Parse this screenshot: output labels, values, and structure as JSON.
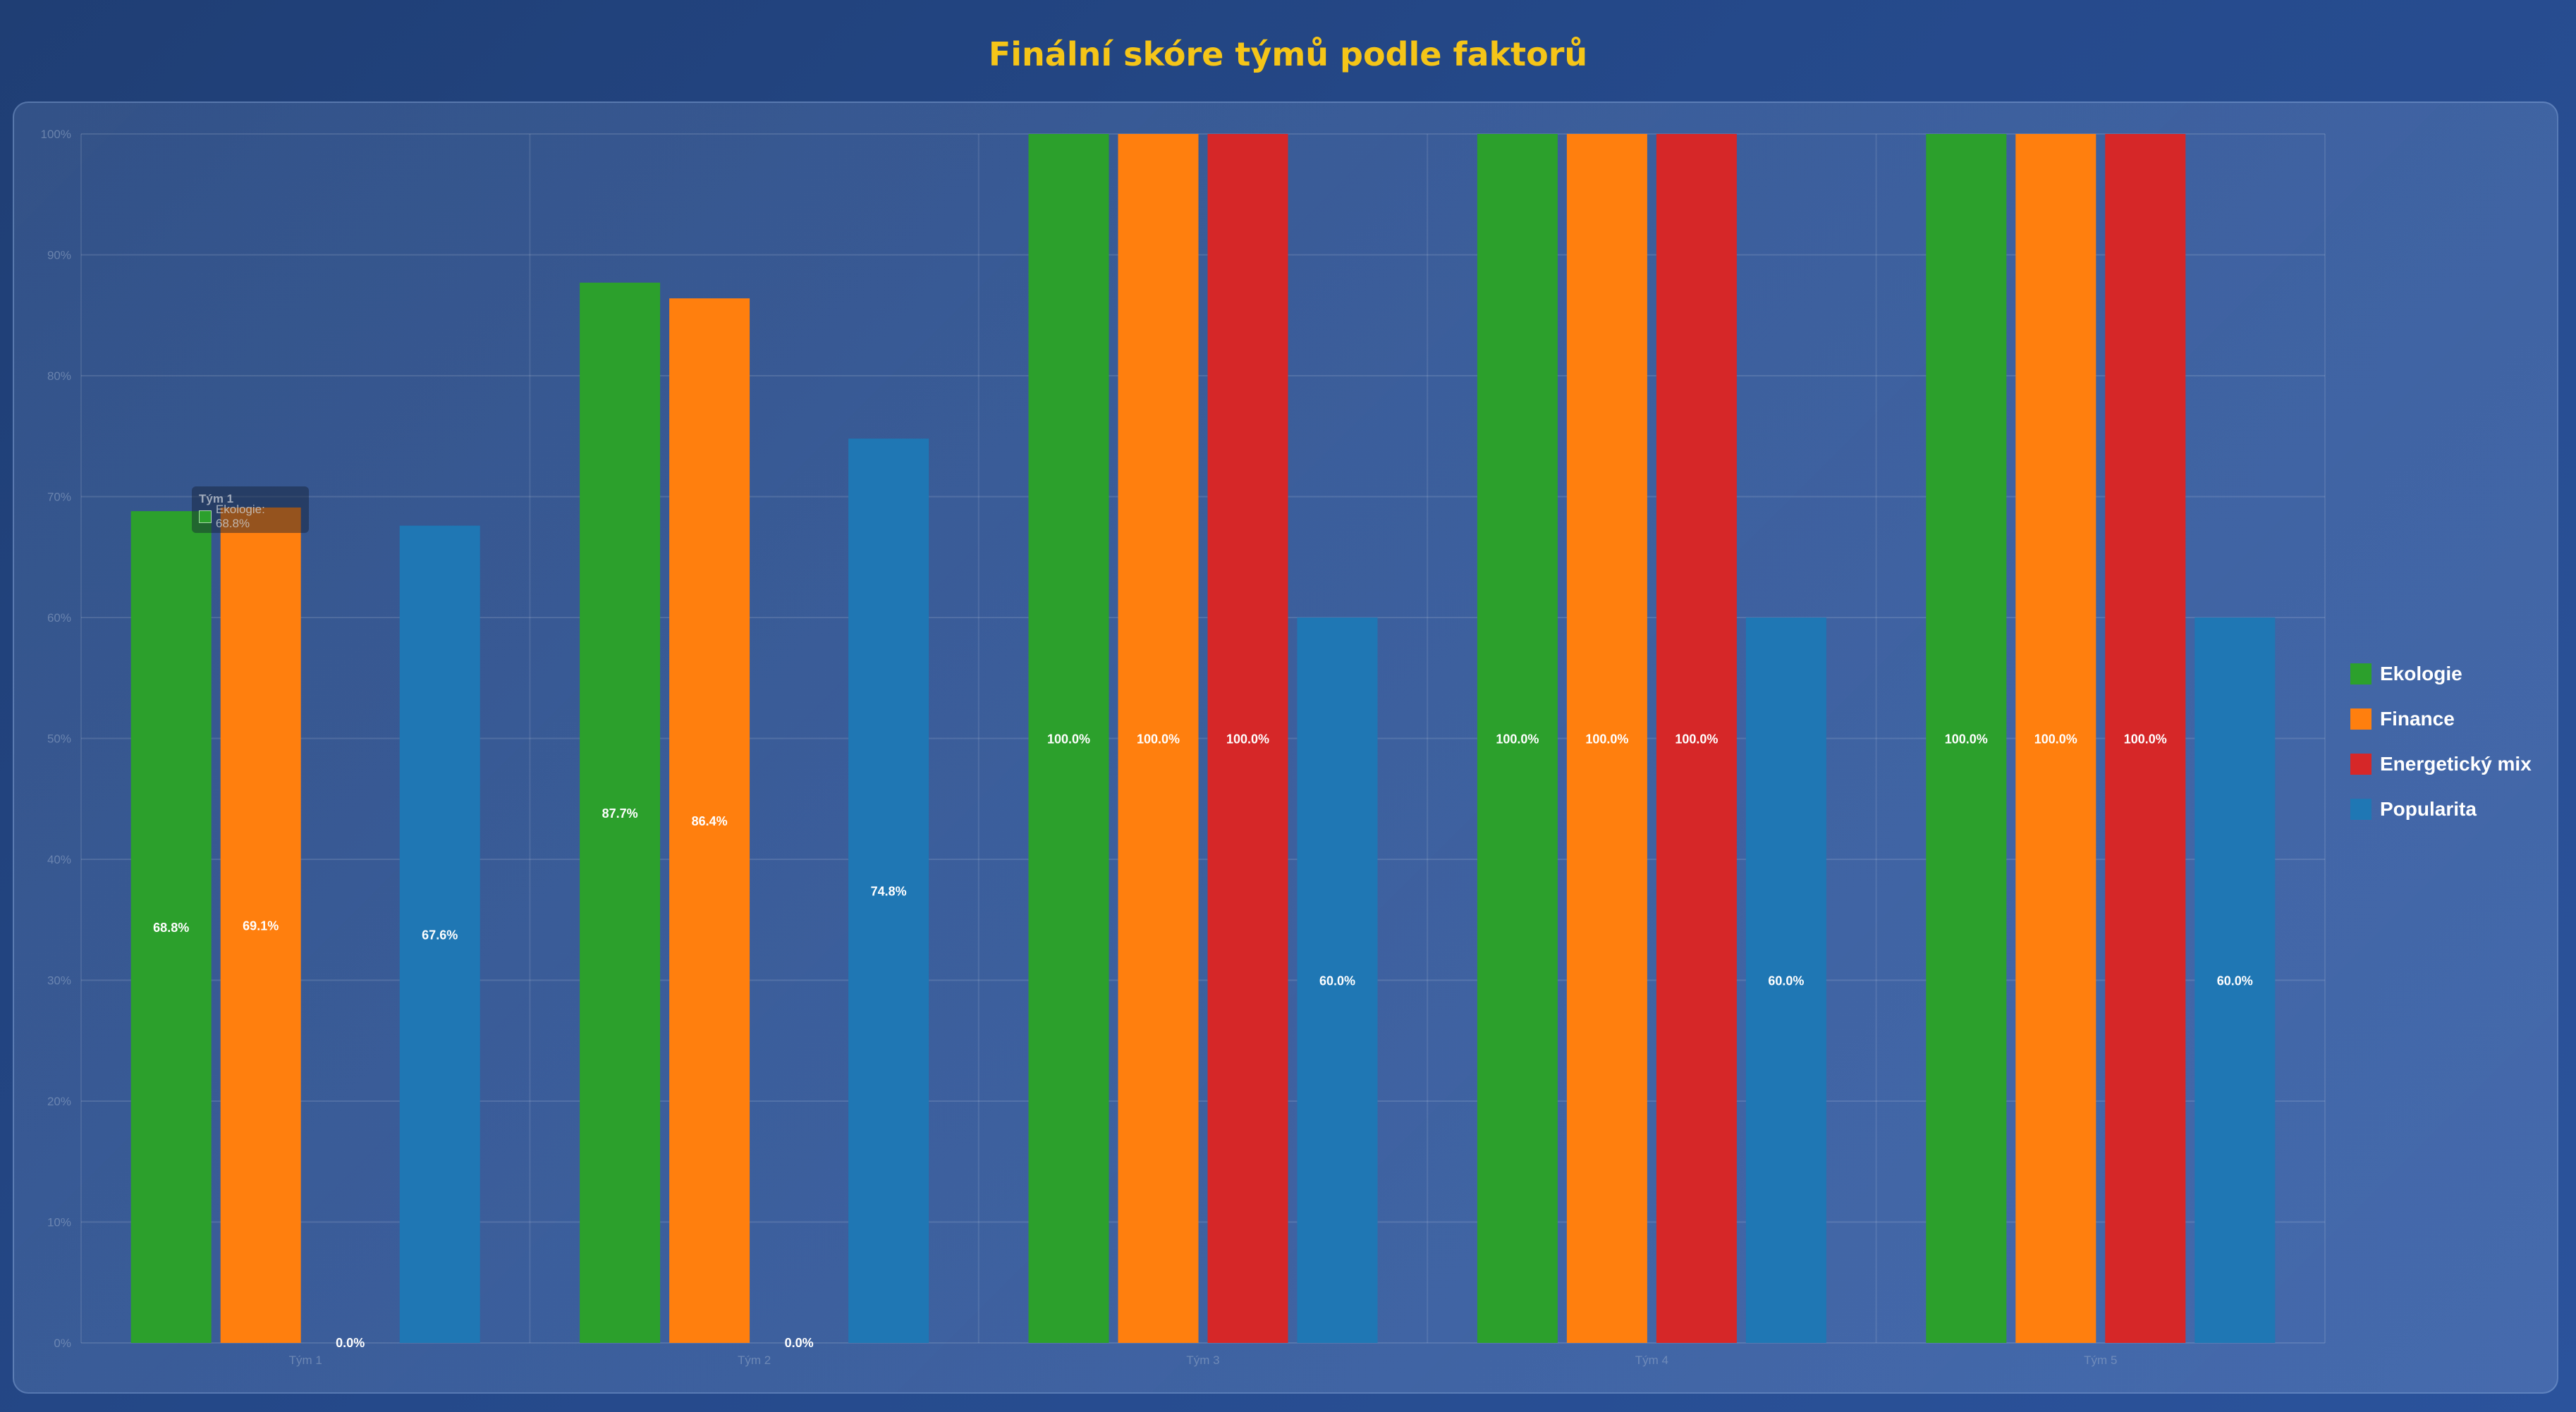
{
  "page": {
    "title": "Finální skóre týmů podle faktorů"
  },
  "colors": {
    "title": "#f5c518",
    "Ekologie": "#2ca02c",
    "Finance": "#ff7f0e",
    "Energetický mix": "#d62728",
    "Popularita": "#1f77b4"
  },
  "chart_data": {
    "type": "bar",
    "title": "",
    "xlabel": "",
    "ylabel": "",
    "categories": [
      "Tým 1",
      "Tým 2",
      "Tým 3",
      "Tým 4",
      "Tým 5"
    ],
    "series": [
      {
        "name": "Ekologie",
        "values": [
          68.8,
          87.7,
          100.0,
          100.0,
          100.0
        ]
      },
      {
        "name": "Finance",
        "values": [
          69.1,
          86.4,
          100.0,
          100.0,
          100.0
        ]
      },
      {
        "name": "Energetický mix",
        "values": [
          0.0,
          0.0,
          100.0,
          100.0,
          100.0
        ]
      },
      {
        "name": "Popularita",
        "values": [
          67.6,
          74.8,
          60.0,
          60.0,
          60.0
        ]
      }
    ],
    "data_labels": [
      [
        "68.8%",
        "87.7%",
        "100.0%",
        "100.0%",
        "100.0%"
      ],
      [
        "69.1%",
        "86.4%",
        "100.0%",
        "100.0%",
        "100.0%"
      ],
      [
        "0.0%",
        "0.0%",
        "100.0%",
        "100.0%",
        "100.0%"
      ],
      [
        "67.6%",
        "74.8%",
        "60.0%",
        "60.0%",
        "60.0%"
      ]
    ],
    "ylim": [
      0,
      100
    ],
    "y_ticks": [
      "0%",
      "10%",
      "20%",
      "30%",
      "40%",
      "50%",
      "60%",
      "70%",
      "80%",
      "90%",
      "100%"
    ],
    "grid": true,
    "legend": {
      "position": "right",
      "entries": [
        "Ekologie",
        "Finance",
        "Energetický mix",
        "Popularita"
      ]
    },
    "tooltip": {
      "title": "Tým 1",
      "text": "Ekologie: 68.8%"
    }
  }
}
